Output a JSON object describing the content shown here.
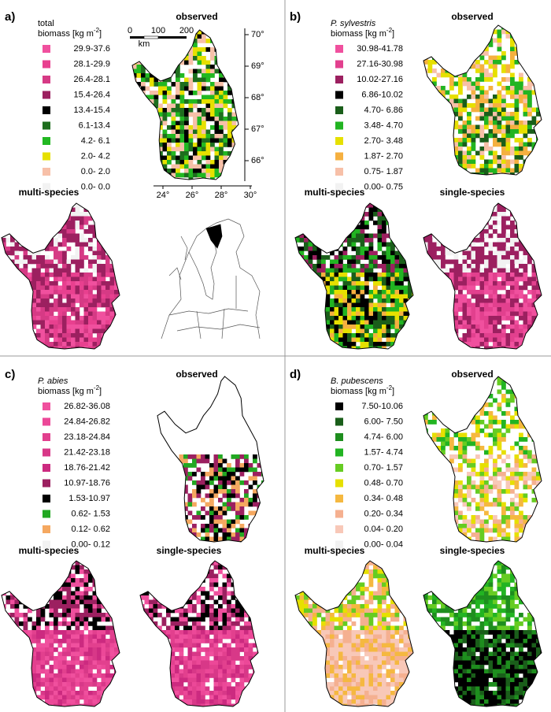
{
  "panels": [
    {
      "label": "a)",
      "legend": {
        "title": "total",
        "unit": "biomass [kg m",
        "exp": "-2",
        "unit_end": "]",
        "items": [
          {
            "label": "29.9-37.6",
            "color": "#f0509e"
          },
          {
            "label": "28.1-29.9",
            "color": "#e8408f"
          },
          {
            "label": "26.4-28.1",
            "color": "#d63a85"
          },
          {
            "label": "15.4-26.4",
            "color": "#9c2060"
          },
          {
            "label": "13.4-15.4",
            "color": "#000000"
          },
          {
            "label": "6.1-13.4",
            "color": "#1e6e1e"
          },
          {
            "label": "4.2- 6.1",
            "color": "#22b822"
          },
          {
            "label": "2.0- 4.2",
            "color": "#e6e000"
          },
          {
            "label": "0.0- 2.0",
            "color": "#f7c0a8"
          },
          {
            "label": "0.0- 0.0",
            "color": "#f2f2f2"
          }
        ]
      },
      "maps": [
        "observed",
        "multi-species"
      ],
      "lat_ticks": [
        "70°",
        "69°",
        "68°",
        "67°",
        "66°"
      ],
      "lon_ticks": [
        "24°",
        "26°",
        "28°",
        "30°"
      ],
      "scale_ticks": [
        "0",
        "100",
        "200"
      ],
      "scale_unit": "km"
    },
    {
      "label": "b)",
      "legend": {
        "title": "P. sylvestris",
        "unit": "biomass [kg m",
        "exp": "-2",
        "unit_end": "]",
        "items": [
          {
            "label": "30.98-41.78",
            "color": "#f0509e"
          },
          {
            "label": "27.16-30.98",
            "color": "#e2408e"
          },
          {
            "label": "10.02-27.16",
            "color": "#9c2060"
          },
          {
            "label": "6.86-10.02",
            "color": "#000000"
          },
          {
            "label": "4.70- 6.86",
            "color": "#1a5e1a"
          },
          {
            "label": "3.48- 4.70",
            "color": "#22b422"
          },
          {
            "label": "2.70- 3.48",
            "color": "#e6e000"
          },
          {
            "label": "1.87- 2.70",
            "color": "#f5b040"
          },
          {
            "label": "0.75- 1.87",
            "color": "#f7c0a8"
          },
          {
            "label": "0.00- 0.75",
            "color": "#f2f2f2"
          }
        ]
      },
      "maps": [
        "observed",
        "multi-species",
        "single-species"
      ]
    },
    {
      "label": "c)",
      "legend": {
        "title": "P. abies",
        "unit": "biomass [kg m",
        "exp": "-2",
        "unit_end": "]",
        "items": [
          {
            "label": "26.82-36.08",
            "color": "#f0509e"
          },
          {
            "label": "24.84-26.82",
            "color": "#ec4898"
          },
          {
            "label": "23.18-24.84",
            "color": "#e2408e"
          },
          {
            "label": "21.42-23.18",
            "color": "#d83888"
          },
          {
            "label": "18.76-21.42",
            "color": "#cc2a80"
          },
          {
            "label": "10.97-18.76",
            "color": "#9c2060"
          },
          {
            "label": "1.53-10.97",
            "color": "#000000"
          },
          {
            "label": "0.62- 1.53",
            "color": "#22a822"
          },
          {
            "label": "0.12- 0.62",
            "color": "#f5a860"
          },
          {
            "label": "0.00- 0.12",
            "color": "#f2f2f2"
          }
        ]
      },
      "maps": [
        "observed",
        "multi-species",
        "single-species"
      ]
    },
    {
      "label": "d)",
      "legend": {
        "title": "B. pubescens",
        "unit": "biomass [kg m",
        "exp": "-2",
        "unit_end": "]",
        "items": [
          {
            "label": "7.50-10.06",
            "color": "#000000"
          },
          {
            "label": "6.00- 7.50",
            "color": "#1a5e1a"
          },
          {
            "label": "4.74- 6.00",
            "color": "#1e8e1e"
          },
          {
            "label": "1.57- 4.74",
            "color": "#22b422"
          },
          {
            "label": "0.70- 1.57",
            "color": "#66cc22"
          },
          {
            "label": "0.48- 0.70",
            "color": "#e6e000"
          },
          {
            "label": "0.34- 0.48",
            "color": "#f5b840"
          },
          {
            "label": "0.20- 0.34",
            "color": "#f5b090"
          },
          {
            "label": "0.04- 0.20",
            "color": "#f8c8b8"
          },
          {
            "label": "0.00- 0.04",
            "color": "#f2f2f2"
          }
        ]
      },
      "maps": [
        "observed",
        "multi-species",
        "single-species"
      ]
    }
  ]
}
